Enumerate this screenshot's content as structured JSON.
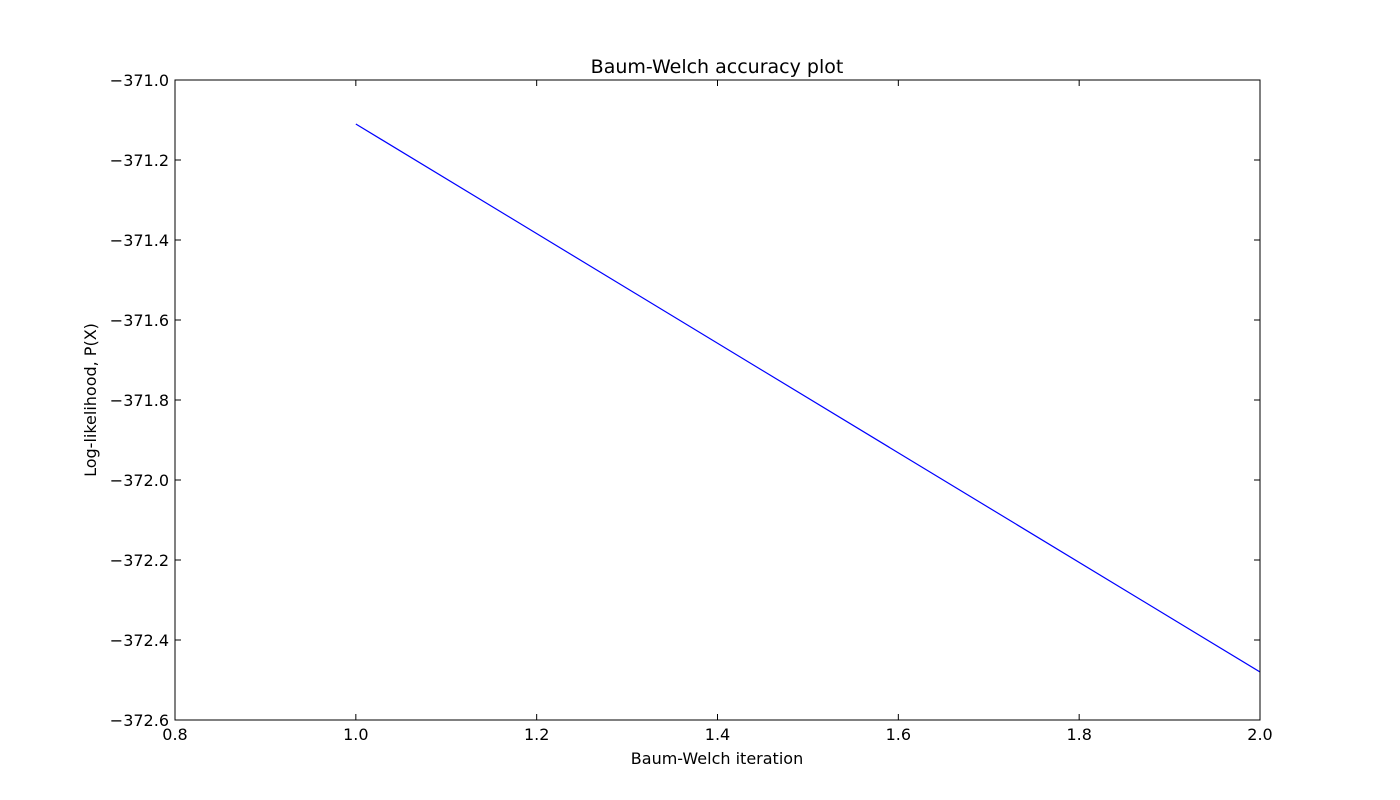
{
  "chart_data": {
    "type": "line",
    "title": "Baum-Welch accuracy plot",
    "xlabel": "Baum-Welch iteration",
    "ylabel": "Log-likelihood, P(X)",
    "xlim": [
      0.8,
      2.0
    ],
    "ylim": [
      -372.6,
      -371.0
    ],
    "xticks": [
      0.8,
      1.0,
      1.2,
      1.4,
      1.6,
      1.8,
      2.0
    ],
    "xtick_labels": [
      "0.8",
      "1.0",
      "1.2",
      "1.4",
      "1.6",
      "1.8",
      "2.0"
    ],
    "yticks": [
      -371.0,
      -371.2,
      -371.4,
      -371.6,
      -371.8,
      -372.0,
      -372.2,
      -372.4,
      -372.6
    ],
    "ytick_labels": [
      "−371.0",
      "−371.2",
      "−371.4",
      "−371.6",
      "−371.8",
      "−372.0",
      "−372.2",
      "−372.4",
      "−372.6"
    ],
    "grid": false,
    "series": [
      {
        "x": [
          1.0,
          2.0
        ],
        "y": [
          -371.11,
          -372.48
        ],
        "color": "#0000ff"
      }
    ]
  }
}
